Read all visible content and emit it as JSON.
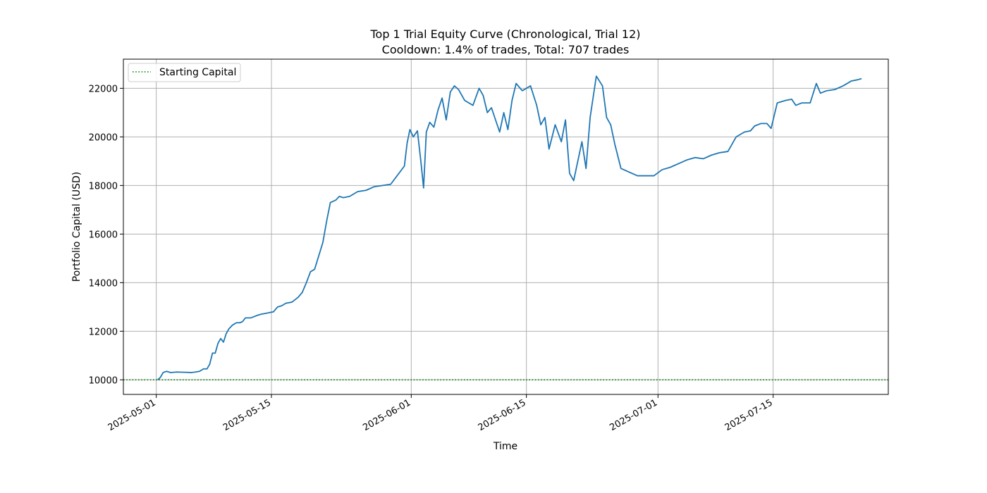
{
  "chart_data": {
    "type": "line",
    "title": "Top 1 Trial Equity Curve (Chronological, Trial 12)",
    "subtitle": "Cooldown: 1.4% of trades, Total: 707 trades",
    "xlabel": "Time",
    "ylabel": "Portfolio Capital (USD)",
    "x_ticks": [
      "2025-05-01",
      "2025-05-15",
      "2025-06-01",
      "2025-06-15",
      "2025-07-01",
      "2025-07-15"
    ],
    "y_ticks": [
      "10000",
      "12000",
      "14000",
      "16000",
      "18000",
      "20000",
      "22000"
    ],
    "xlim": [
      "2025-04-27",
      "2025-07-29"
    ],
    "ylim": [
      9400,
      23200
    ],
    "grid": true,
    "legend": {
      "position": "top-left",
      "entries": [
        "Starting Capital"
      ]
    },
    "colors": {
      "series": "#1f77b4",
      "reference": "#008000",
      "grid": "#b0b0b0"
    },
    "reference_line": {
      "name": "Starting Capital",
      "y": 10000,
      "style": "dotted"
    },
    "series": [
      {
        "x": [
          "2025-05-01",
          "2025-05-01",
          "2025-05-01",
          "2025-05-02",
          "2025-05-02",
          "2025-05-03",
          "2025-05-04",
          "2025-05-05",
          "2025-05-05",
          "2025-05-06",
          "2025-05-06",
          "2025-05-07",
          "2025-05-07",
          "2025-05-07",
          "2025-05-08",
          "2025-05-08",
          "2025-05-08",
          "2025-05-09",
          "2025-05-09",
          "2025-05-09",
          "2025-05-10",
          "2025-05-10",
          "2025-05-11",
          "2025-05-11",
          "2025-05-11",
          "2025-05-12",
          "2025-05-13",
          "2025-05-13",
          "2025-05-14",
          "2025-05-15",
          "2025-05-15",
          "2025-05-16",
          "2025-05-16",
          "2025-05-17",
          "2025-05-18",
          "2025-05-18",
          "2025-05-19",
          "2025-05-19",
          "2025-05-20",
          "2025-05-20",
          "2025-05-21",
          "2025-05-21",
          "2025-05-22",
          "2025-05-22",
          "2025-05-22",
          "2025-05-23",
          "2025-05-23",
          "2025-05-24",
          "2025-05-25",
          "2025-05-26",
          "2025-05-27",
          "2025-05-29",
          "2025-05-31",
          "2025-05-31",
          "2025-05-31",
          "2025-06-01",
          "2025-06-01",
          "2025-06-02",
          "2025-06-02",
          "2025-06-02",
          "2025-06-03",
          "2025-06-03",
          "2025-06-04",
          "2025-06-04",
          "2025-06-05",
          "2025-06-05",
          "2025-06-06",
          "2025-06-06",
          "2025-06-07",
          "2025-06-08",
          "2025-06-09",
          "2025-06-09",
          "2025-06-10",
          "2025-06-10",
          "2025-06-11",
          "2025-06-11",
          "2025-06-12",
          "2025-06-12",
          "2025-06-13",
          "2025-06-13",
          "2025-06-14",
          "2025-06-15",
          "2025-06-16",
          "2025-06-16",
          "2025-06-17",
          "2025-06-17",
          "2025-06-18",
          "2025-06-19",
          "2025-06-19",
          "2025-06-20",
          "2025-06-20",
          "2025-06-21",
          "2025-06-21",
          "2025-06-22",
          "2025-06-22",
          "2025-06-23",
          "2025-06-24",
          "2025-06-24",
          "2025-06-25",
          "2025-06-25",
          "2025-06-26",
          "2025-06-28",
          "2025-06-30",
          "2025-07-01",
          "2025-07-02",
          "2025-07-03",
          "2025-07-04",
          "2025-07-05",
          "2025-07-06",
          "2025-07-07",
          "2025-07-08",
          "2025-07-09",
          "2025-07-10",
          "2025-07-11",
          "2025-07-12",
          "2025-07-12",
          "2025-07-13",
          "2025-07-14",
          "2025-07-14",
          "2025-07-15",
          "2025-07-16",
          "2025-07-17",
          "2025-07-17",
          "2025-07-18",
          "2025-07-19",
          "2025-07-20",
          "2025-07-20",
          "2025-07-21",
          "2025-07-22",
          "2025-07-23",
          "2025-07-24",
          "2025-07-25",
          "2025-07-25"
        ],
        "y": [
          10000,
          10100,
          10300,
          10350,
          10300,
          10320,
          10310,
          10300,
          10320,
          10350,
          10450,
          10450,
          10650,
          11100,
          11100,
          11500,
          11700,
          11550,
          11900,
          12100,
          12250,
          12350,
          12350,
          12400,
          12550,
          12550,
          12650,
          12700,
          12750,
          12800,
          13000,
          13050,
          13150,
          13200,
          13400,
          13600,
          14000,
          14450,
          14550,
          15100,
          15650,
          16600,
          17300,
          17350,
          17400,
          17550,
          17500,
          17550,
          17750,
          17800,
          17950,
          18050,
          18800,
          19750,
          20300,
          20000,
          20250,
          19000,
          17900,
          20200,
          20600,
          20400,
          21100,
          21600,
          20700,
          21850,
          22100,
          21950,
          21500,
          21300,
          22000,
          21700,
          21000,
          21200,
          20700,
          20200,
          21000,
          20300,
          21500,
          22200,
          21900,
          22100,
          21300,
          20500,
          20800,
          19500,
          20500,
          19800,
          20700,
          18500,
          18200,
          19000,
          19800,
          18700,
          20800,
          22500,
          22100,
          20800,
          20500,
          19700,
          18700,
          18400,
          18400,
          18650,
          18750,
          18900,
          19050,
          19150,
          19100,
          19250,
          19350,
          19400,
          20000,
          20200,
          20250,
          20450,
          20550,
          20550,
          20350,
          21400,
          21500,
          21550,
          21300,
          21400,
          21400,
          22200,
          21800,
          21900,
          21950,
          22100,
          22300,
          22350,
          22400
        ]
      }
    ]
  }
}
